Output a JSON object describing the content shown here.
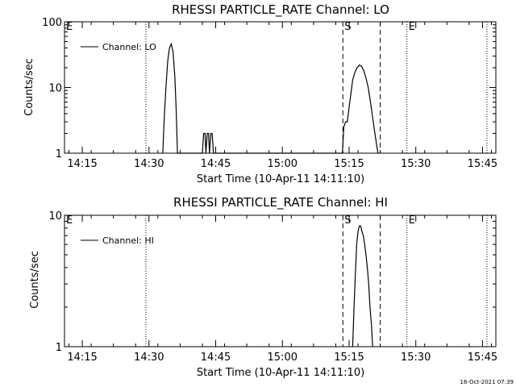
{
  "footer": {
    "timestamp": "16-Oct-2021 07:39"
  },
  "chart_data": [
    {
      "type": "line",
      "title": "RHESSI PARTICLE_RATE Channel: LO",
      "xlabel": "Start Time (10-Apr-11 14:11:10)",
      "ylabel": "Counts/sec",
      "y_scale": "log",
      "ylim": [
        1,
        100
      ],
      "xlim_minutes": [
        0,
        97
      ],
      "x_ticks": [
        "14:15",
        "14:30",
        "14:45",
        "15:00",
        "15:15",
        "15:30",
        "15:45"
      ],
      "x_tick_minutes": [
        4,
        19,
        34,
        49,
        64,
        79,
        94
      ],
      "y_ticks": [
        "1",
        "10",
        "100"
      ],
      "y_tick_values": [
        1,
        10,
        100
      ],
      "legend": {
        "label": "Channel: LO",
        "position": "top-left"
      },
      "event_markers": [
        {
          "label": "E",
          "minute": 0,
          "style": "dotted"
        },
        {
          "label": "",
          "minute": 18.3,
          "style": "dotted"
        },
        {
          "label": "S",
          "minute": 62.6,
          "style": "dashed"
        },
        {
          "label": "",
          "minute": 71,
          "style": "dashed"
        },
        {
          "label": "E",
          "minute": 77,
          "style": "dotted"
        },
        {
          "label": "",
          "minute": 95,
          "style": "dotted"
        }
      ],
      "series": [
        {
          "x": [
            22.1,
            22.4,
            22.8,
            23.2,
            23.6,
            24.0,
            24.4,
            24.8,
            25.1,
            25.4,
            31.0,
            31.3,
            31.6,
            31.8,
            32.1,
            32.4,
            32.6,
            32.9,
            33.2,
            33.5,
            62.5,
            62.8,
            63.2,
            63.6,
            64.0,
            64.4,
            64.8,
            65.3,
            65.8,
            66.3,
            66.8,
            67.3,
            67.8,
            68.3,
            68.8,
            69.3,
            69.8,
            70.3,
            70.5
          ],
          "y": [
            1,
            3,
            10,
            25,
            40,
            46,
            35,
            15,
            5,
            1,
            1,
            2,
            2,
            1,
            2,
            2,
            1,
            2,
            2,
            1,
            1,
            2.5,
            3,
            3,
            5,
            8,
            13,
            17,
            20,
            22,
            21,
            18,
            14,
            10,
            6,
            3.5,
            2,
            1.2,
            1
          ]
        }
      ]
    },
    {
      "type": "line",
      "title": "RHESSI PARTICLE_RATE Channel: HI",
      "xlabel": "Start Time (10-Apr-11 14:11:10)",
      "ylabel": "Counts/sec",
      "y_scale": "log",
      "ylim": [
        1,
        10
      ],
      "xlim_minutes": [
        0,
        97
      ],
      "x_ticks": [
        "14:15",
        "14:30",
        "14:45",
        "15:00",
        "15:15",
        "15:30",
        "15:45"
      ],
      "x_tick_minutes": [
        4,
        19,
        34,
        49,
        64,
        79,
        94
      ],
      "y_ticks": [
        "1",
        "10"
      ],
      "y_tick_values": [
        1,
        10
      ],
      "legend": {
        "label": "Channel: HI",
        "position": "top-left"
      },
      "event_markers": [
        {
          "label": "E",
          "minute": 0,
          "style": "dotted"
        },
        {
          "label": "",
          "minute": 18.3,
          "style": "dotted"
        },
        {
          "label": "S",
          "minute": 62.6,
          "style": "dashed"
        },
        {
          "label": "",
          "minute": 71,
          "style": "dashed"
        },
        {
          "label": "E",
          "minute": 77,
          "style": "dotted"
        },
        {
          "label": "",
          "minute": 95,
          "style": "dotted"
        }
      ],
      "series": [
        {
          "x": [
            64.8,
            65.1,
            65.4,
            65.7,
            66.0,
            66.3,
            66.6,
            66.9,
            67.2,
            67.5,
            67.8,
            68.1,
            68.4,
            68.7,
            69.0,
            69.3
          ],
          "y": [
            1,
            2,
            3.5,
            6,
            7.5,
            8.3,
            8.3,
            7.5,
            7,
            6,
            5,
            4,
            3,
            2,
            1.5,
            1
          ]
        }
      ]
    }
  ]
}
